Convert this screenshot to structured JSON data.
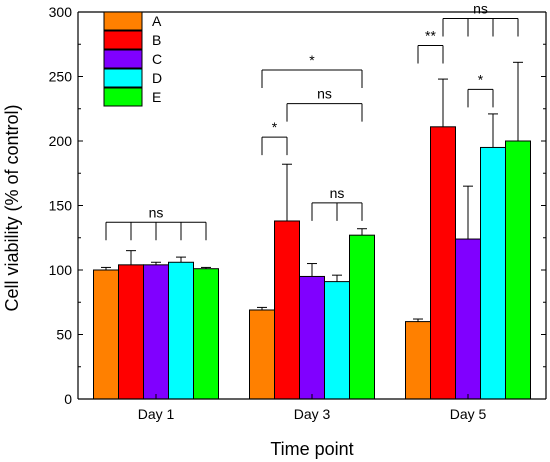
{
  "chart_data": {
    "type": "bar",
    "xlabel": "Time point",
    "ylabel": "Cell viability (% of control)",
    "ylim": [
      0,
      300
    ],
    "yticks": [
      0,
      50,
      100,
      150,
      200,
      250,
      300
    ],
    "legend_position": "top-left",
    "categories": [
      "Day 1",
      "Day 3",
      "Day 5"
    ],
    "series": [
      {
        "name": "A",
        "color": "#ff8000",
        "values": [
          100,
          69,
          60
        ],
        "errors": [
          2,
          2,
          2
        ]
      },
      {
        "name": "B",
        "color": "#ff0000",
        "values": [
          104,
          138,
          211
        ],
        "errors": [
          11,
          44,
          37
        ]
      },
      {
        "name": "C",
        "color": "#8000ff",
        "values": [
          104,
          95,
          124
        ],
        "errors": [
          2,
          10,
          41
        ]
      },
      {
        "name": "D",
        "color": "#00ffff",
        "values": [
          106,
          91,
          195
        ],
        "errors": [
          4,
          5,
          26
        ]
      },
      {
        "name": "E",
        "color": "#00ff00",
        "values": [
          101,
          127,
          200
        ],
        "errors": [
          1,
          5,
          61
        ]
      }
    ],
    "annotations": [
      {
        "label": "ns",
        "category": 0,
        "type": "multi",
        "series": [
          0,
          1,
          2,
          3,
          4
        ],
        "level": 137
      },
      {
        "label": "*",
        "category": 1,
        "type": "pair",
        "series": [
          0,
          4
        ],
        "level": 255
      },
      {
        "label": "ns",
        "category": 1,
        "type": "pair",
        "series": [
          1,
          4
        ],
        "level": 229
      },
      {
        "label": "*",
        "category": 1,
        "type": "pair",
        "series": [
          0,
          1
        ],
        "level": 203
      },
      {
        "label": "ns",
        "category": 1,
        "type": "multi",
        "series": [
          2,
          3,
          4
        ],
        "level": 152
      },
      {
        "label": "**",
        "category": 2,
        "type": "pair",
        "series": [
          0,
          1
        ],
        "level": 274
      },
      {
        "label": "ns",
        "category": 2,
        "type": "multi",
        "series": [
          1,
          2,
          3,
          4
        ],
        "level": 295
      },
      {
        "label": "*",
        "category": 2,
        "type": "pair",
        "series": [
          2,
          3
        ],
        "level": 240
      }
    ]
  }
}
